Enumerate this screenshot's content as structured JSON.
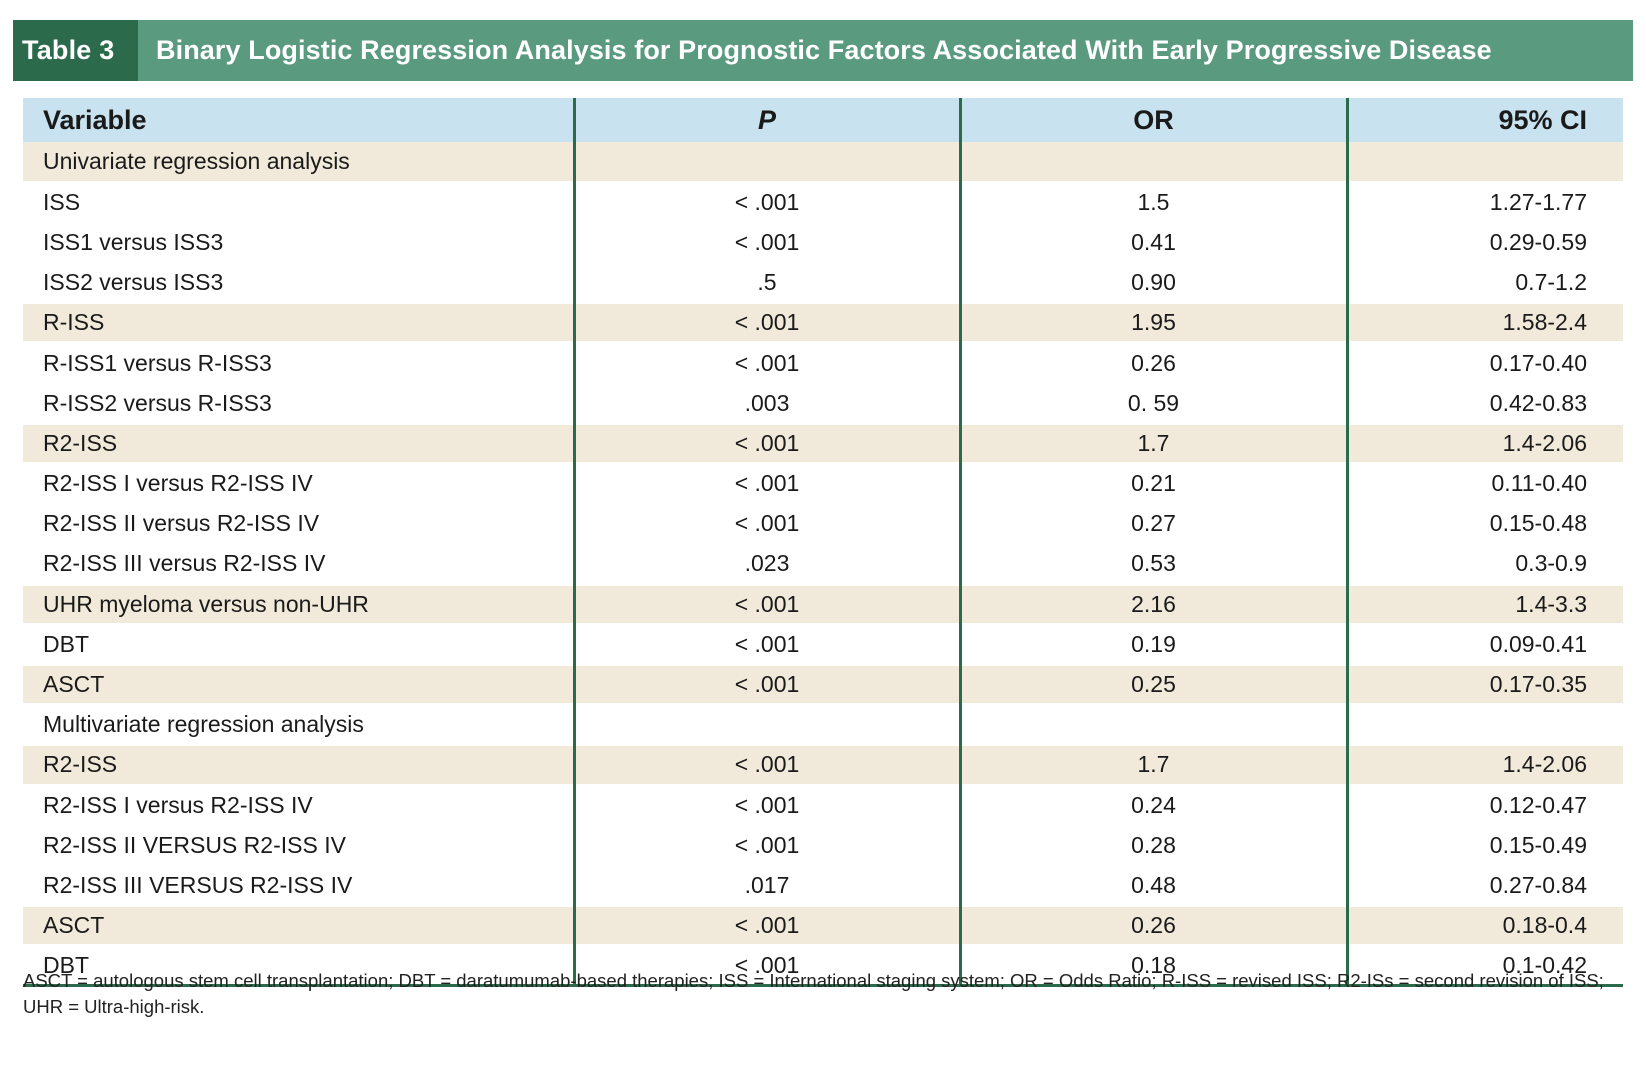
{
  "table_label": "Table 3",
  "table_title": "Binary Logistic Regression Analysis for Prognostic Factors Associated With Early Progressive Disease",
  "columns": {
    "variable": "Variable",
    "p": "P",
    "or": "OR",
    "ci": "95% CI"
  },
  "rows": [
    {
      "variable": "Univariate regression analysis",
      "p": "",
      "or": "",
      "ci": ""
    },
    {
      "variable": "ISS",
      "p": "< .001",
      "or": "1.5",
      "ci": "1.27-1.77"
    },
    {
      "variable": "ISS1 versus ISS3",
      "p": "< .001",
      "or": "0.41",
      "ci": "0.29-0.59"
    },
    {
      "variable": "ISS2 versus ISS3",
      "p": ".5",
      "or": "0.90",
      "ci": "0.7-1.2"
    },
    {
      "variable": "R-ISS",
      "p": "< .001",
      "or": "1.95",
      "ci": "1.58-2.4"
    },
    {
      "variable": "R-ISS1 versus R-ISS3",
      "p": "< .001",
      "or": "0.26",
      "ci": "0.17-0.40"
    },
    {
      "variable": "R-ISS2 versus R-ISS3",
      "p": ".003",
      "or": "0. 59",
      "ci": "0.42-0.83"
    },
    {
      "variable": "R2-ISS",
      "p": "< .001",
      "or": "1.7",
      "ci": "1.4-2.06"
    },
    {
      "variable": "R2-ISS I versus R2-ISS IV",
      "p": "< .001",
      "or": "0.21",
      "ci": "0.11-0.40"
    },
    {
      "variable": "R2-ISS II versus R2-ISS IV",
      "p": "< .001",
      "or": "0.27",
      "ci": "0.15-0.48"
    },
    {
      "variable": "R2-ISS III versus R2-ISS IV",
      "p": ".023",
      "or": "0.53",
      "ci": "0.3-0.9"
    },
    {
      "variable": "UHR myeloma versus non-UHR",
      "p": "< .001",
      "or": "2.16",
      "ci": "1.4-3.3"
    },
    {
      "variable": "DBT",
      "p": "< .001",
      "or": "0.19",
      "ci": "0.09-0.41"
    },
    {
      "variable": "ASCT",
      "p": "< .001",
      "or": "0.25",
      "ci": "0.17-0.35"
    },
    {
      "variable": "Multivariate regression analysis",
      "p": "",
      "or": "",
      "ci": ""
    },
    {
      "variable": "R2-ISS",
      "p": "< .001",
      "or": "1.7",
      "ci": "1.4-2.06"
    },
    {
      "variable": "R2-ISS I versus R2-ISS IV",
      "p": "< .001",
      "or": "0.24",
      "ci": "0.12-0.47"
    },
    {
      "variable": "R2-ISS II VERSUS R2-ISS IV",
      "p": "< .001",
      "or": "0.28",
      "ci": "0.15-0.49"
    },
    {
      "variable": "R2-ISS III VERSUS R2-ISS IV",
      "p": ".017",
      "or": "0.48",
      "ci": "0.27-0.84"
    },
    {
      "variable": "ASCT",
      "p": "< .001",
      "or": "0.26",
      "ci": "0.18-0.4"
    },
    {
      "variable": "DBT",
      "p": "< .001",
      "or": "0.18",
      "ci": "0.1-0.42"
    }
  ],
  "shaded_rows": [
    0,
    4,
    7,
    11,
    13,
    15,
    19
  ],
  "footnote": "ASCT = autologous stem cell transplantation; DBT = daratumumab-based therapies; ISS = International staging system; OR = Odds Ratio; R-ISS = revised ISS; R2-ISs = second revision of ISS; UHR = Ultra-high-risk.",
  "colors": {
    "label_bg": "#2b6a4a",
    "title_bg": "#5a9a7e",
    "header_bg": "#c8e2ef",
    "shaded_row_bg": "#f1e9da",
    "rule_color": "#2b6a4a"
  }
}
